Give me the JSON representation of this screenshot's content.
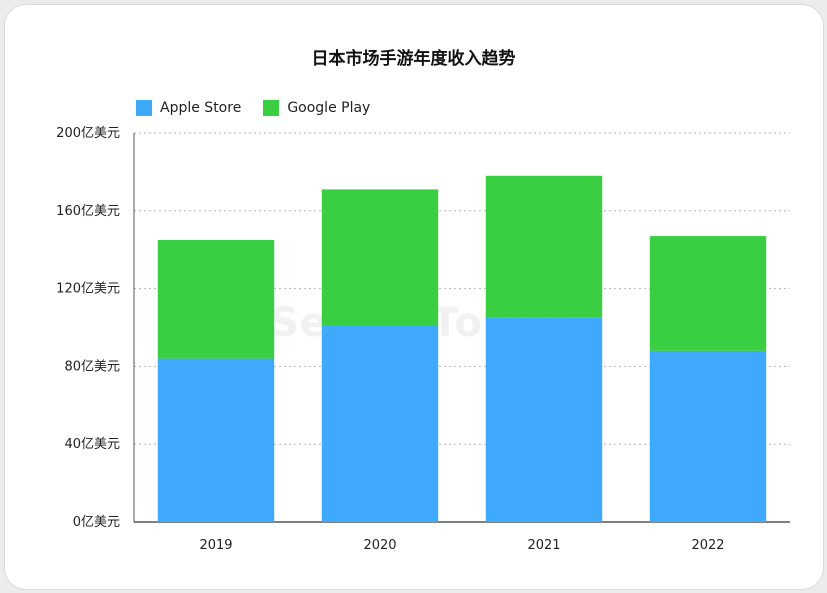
{
  "chart_data": {
    "type": "bar",
    "stacked": true,
    "title": "日本市场手游年度收入趋势",
    "categories": [
      "2019",
      "2020",
      "2021",
      "2022"
    ],
    "series": [
      {
        "name": "Apple Store",
        "color": "#3fa9fc",
        "values": [
          84,
          101,
          105,
          88
        ]
      },
      {
        "name": "Google Play",
        "color": "#3acf43",
        "values": [
          61,
          70,
          73,
          59
        ]
      }
    ],
    "ylim": [
      0,
      200
    ],
    "yticks": [
      "0亿美元",
      "40亿美元",
      "80亿美元",
      "120亿美元",
      "160亿美元",
      "200亿美元"
    ],
    "grid": true,
    "legend": "top-left"
  },
  "watermark": "SensorTower"
}
